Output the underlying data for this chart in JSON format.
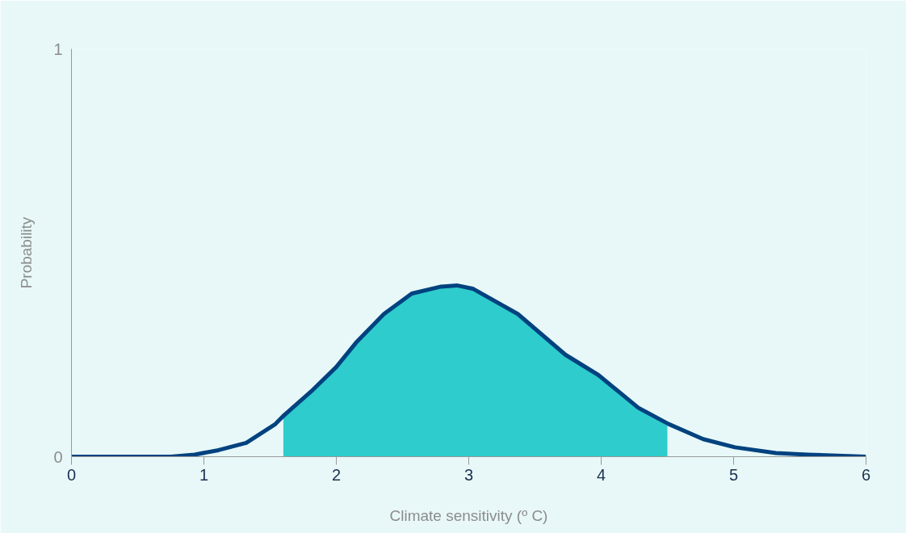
{
  "chart_data": {
    "type": "line",
    "xlabel": "Climate sensitivity (º C)",
    "ylabel": "Probability",
    "xlim": [
      0,
      6
    ],
    "ylim": [
      0,
      1
    ],
    "xticks": [
      0,
      1,
      2,
      3,
      4,
      5,
      6
    ],
    "yticks": [
      0,
      1
    ],
    "grid": false,
    "line_style": "solid",
    "marker": "none",
    "series": [
      {
        "type": "area",
        "color": "#2ecccd",
        "x": [
          1.6,
          1.81,
          2.0,
          2.15,
          2.36,
          2.57,
          2.79,
          2.91,
          3.03,
          3.37,
          3.73,
          3.98,
          4.28,
          4.5
        ],
        "values": [
          0.1,
          0.16,
          0.22,
          0.28,
          0.35,
          0.4,
          0.417,
          0.42,
          0.412,
          0.35,
          0.25,
          0.2,
          0.12,
          0.08
        ]
      },
      {
        "color": "#00427f",
        "x": [
          0,
          0.75,
          0.93,
          1.11,
          1.32,
          1.54,
          1.6,
          1.81,
          2.0,
          2.15,
          2.36,
          2.57,
          2.79,
          2.91,
          3.03,
          3.37,
          3.73,
          3.98,
          4.28,
          4.51,
          4.77,
          5.01,
          5.32,
          5.56,
          6
        ],
        "values": [
          0,
          0,
          0.005,
          0.016,
          0.034,
          0.08,
          0.1,
          0.16,
          0.22,
          0.28,
          0.35,
          0.4,
          0.417,
          0.42,
          0.412,
          0.35,
          0.25,
          0.2,
          0.12,
          0.08,
          0.043,
          0.023,
          0.009,
          0.005,
          0
        ]
      }
    ]
  }
}
